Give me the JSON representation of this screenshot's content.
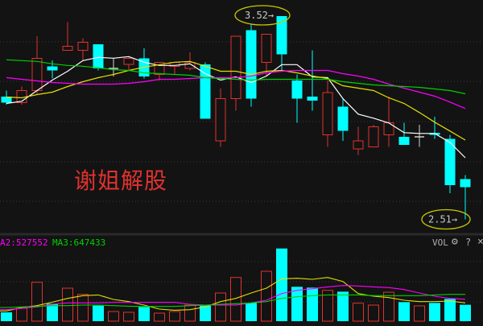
{
  "watermark": "谢姐解股",
  "colors": {
    "up": "#e0322e",
    "down": "#00ffff",
    "doji": "#d0d0d0",
    "ma1": "#ffffff",
    "ma2": "#e0e000",
    "ma3": "#ff00ff",
    "ma4": "#00d000",
    "annotation": "#c8c800",
    "background": "#131313"
  },
  "chart_data": [
    {
      "type": "candlestick",
      "ylim": [
        2.44,
        3.6
      ],
      "grid": true,
      "annotations": [
        {
          "text": "3.52→",
          "label": "high",
          "value": 3.52,
          "candle_index": 18
        },
        {
          "text": "2.51→",
          "label": "low",
          "value": 2.51,
          "candle_index": 30
        }
      ],
      "ohlc": [
        [
          3.12,
          3.15,
          3.08,
          3.09
        ],
        [
          3.09,
          3.17,
          3.08,
          3.15
        ],
        [
          3.15,
          3.42,
          3.13,
          3.31
        ],
        [
          3.27,
          3.3,
          3.21,
          3.25
        ],
        [
          3.35,
          3.49,
          3.35,
          3.37
        ],
        [
          3.35,
          3.41,
          3.3,
          3.39
        ],
        [
          3.38,
          3.38,
          3.25,
          3.26
        ],
        [
          3.26,
          3.31,
          3.22,
          3.26
        ],
        [
          3.28,
          3.32,
          3.25,
          3.31
        ],
        [
          3.31,
          3.36,
          3.21,
          3.22
        ],
        [
          3.23,
          3.29,
          3.2,
          3.29
        ],
        [
          3.27,
          3.29,
          3.23,
          3.29
        ],
        [
          3.26,
          3.34,
          3.25,
          3.29
        ],
        [
          3.28,
          3.29,
          3.01,
          3.01
        ],
        [
          2.9,
          3.16,
          2.87,
          3.11
        ],
        [
          3.11,
          3.42,
          3.05,
          3.42
        ],
        [
          3.45,
          3.48,
          3.07,
          3.11
        ],
        [
          3.29,
          3.43,
          3.22,
          3.43
        ],
        [
          3.52,
          3.52,
          3.25,
          3.33
        ],
        [
          3.2,
          3.23,
          2.99,
          3.11
        ],
        [
          3.12,
          3.35,
          3.05,
          3.1
        ],
        [
          2.93,
          3.2,
          2.87,
          3.14
        ],
        [
          3.07,
          3.11,
          2.9,
          2.95
        ],
        [
          2.86,
          2.97,
          2.83,
          2.9
        ],
        [
          2.87,
          2.98,
          2.87,
          2.97
        ],
        [
          2.93,
          3.12,
          2.87,
          2.99
        ],
        [
          2.92,
          2.99,
          2.88,
          2.88
        ],
        [
          2.92,
          2.98,
          2.87,
          2.92
        ],
        [
          2.94,
          3.02,
          2.91,
          2.93
        ],
        [
          2.91,
          2.93,
          2.64,
          2.68
        ],
        [
          2.71,
          2.73,
          2.51,
          2.67
        ]
      ],
      "ma_lines": [
        {
          "color": "#ffffff",
          "values": [
            3.086,
            3.097,
            3.15,
            3.202,
            3.246,
            3.299,
            3.315,
            3.311,
            3.319,
            3.291,
            3.275,
            3.275,
            3.283,
            3.234,
            3.202,
            3.218,
            3.19,
            3.222,
            3.279,
            3.279,
            3.218,
            3.214,
            3.11,
            3.033,
            3.013,
            2.989,
            2.941,
            2.937,
            2.937,
            2.892,
            2.816
          ]
        },
        {
          "color": "#e0e000",
          "values": [
            3.118,
            3.114,
            3.13,
            3.142,
            3.17,
            3.194,
            3.214,
            3.23,
            3.25,
            3.266,
            3.279,
            3.291,
            3.295,
            3.271,
            3.246,
            3.246,
            3.23,
            3.246,
            3.25,
            3.238,
            3.222,
            3.21,
            3.174,
            3.162,
            3.15,
            3.114,
            3.086,
            3.041,
            2.993,
            2.949,
            2.904
          ]
        },
        {
          "color": "#ff00ff",
          "values": [
            3.214,
            3.206,
            3.198,
            3.19,
            3.186,
            3.182,
            3.182,
            3.182,
            3.186,
            3.194,
            3.206,
            3.206,
            3.21,
            3.214,
            3.214,
            3.214,
            3.222,
            3.238,
            3.246,
            3.25,
            3.25,
            3.25,
            3.234,
            3.222,
            3.206,
            3.182,
            3.162,
            3.142,
            3.122,
            3.093,
            3.061
          ]
        },
        {
          "color": "#00d000",
          "values": [
            3.303,
            3.299,
            3.295,
            3.283,
            3.275,
            3.271,
            3.263,
            3.254,
            3.25,
            3.238,
            3.234,
            3.23,
            3.226,
            3.214,
            3.21,
            3.206,
            3.202,
            3.206,
            3.206,
            3.206,
            3.206,
            3.206,
            3.194,
            3.186,
            3.178,
            3.174,
            3.17,
            3.166,
            3.158,
            3.15,
            3.134
          ]
        }
      ]
    },
    {
      "type": "bar",
      "title": "VOL",
      "legend": [
        {
          "text": "A2:527552",
          "color": "#ff00ff"
        },
        {
          "text": "MA3:647433",
          "color": "#00d000"
        }
      ],
      "values": [
        213000,
        311000,
        939000,
        421000,
        796000,
        647000,
        375000,
        233000,
        214000,
        343000,
        194000,
        233000,
        388000,
        375000,
        680000,
        1055000,
        440000,
        1204000,
        1754000,
        829000,
        809000,
        744000,
        712000,
        434000,
        388000,
        699000,
        460000,
        369000,
        440000,
        537000,
        395000
      ],
      "ma_lines": [
        {
          "color": "#e0e000",
          "values": [
            246000,
            330000,
            375000,
            459000,
            550000,
            615000,
            634000,
            524000,
            472000,
            388000,
            291000,
            265000,
            278000,
            343000,
            472000,
            550000,
            679000,
            796000,
            1022000,
            1035000,
            1009000,
            1055000,
            958000,
            666000,
            602000,
            569000,
            505000,
            472000,
            472000,
            485000,
            440000
          ]
        },
        {
          "color": "#ff00ff",
          "values": [
            278000,
            311000,
            343000,
            408000,
            440000,
            440000,
            440000,
            453000,
            453000,
            453000,
            453000,
            453000,
            408000,
            388000,
            388000,
            388000,
            440000,
            505000,
            666000,
            744000,
            783000,
            828000,
            860000,
            848000,
            828000,
            809000,
            763000,
            679000,
            602000,
            550000,
            527552
          ]
        },
        {
          "color": "#00d000",
          "values": [
            330000,
            343000,
            356000,
            375000,
            375000,
            388000,
            388000,
            375000,
            362000,
            356000,
            356000,
            356000,
            375000,
            388000,
            408000,
            421000,
            440000,
            472000,
            550000,
            589000,
            615000,
            634000,
            634000,
            634000,
            615000,
            615000,
            615000,
            615000,
            634000,
            647000,
            647433
          ]
        }
      ]
    }
  ],
  "toolbar": {
    "vol_label": "VOL",
    "help_label": "?",
    "close_label": "×"
  }
}
